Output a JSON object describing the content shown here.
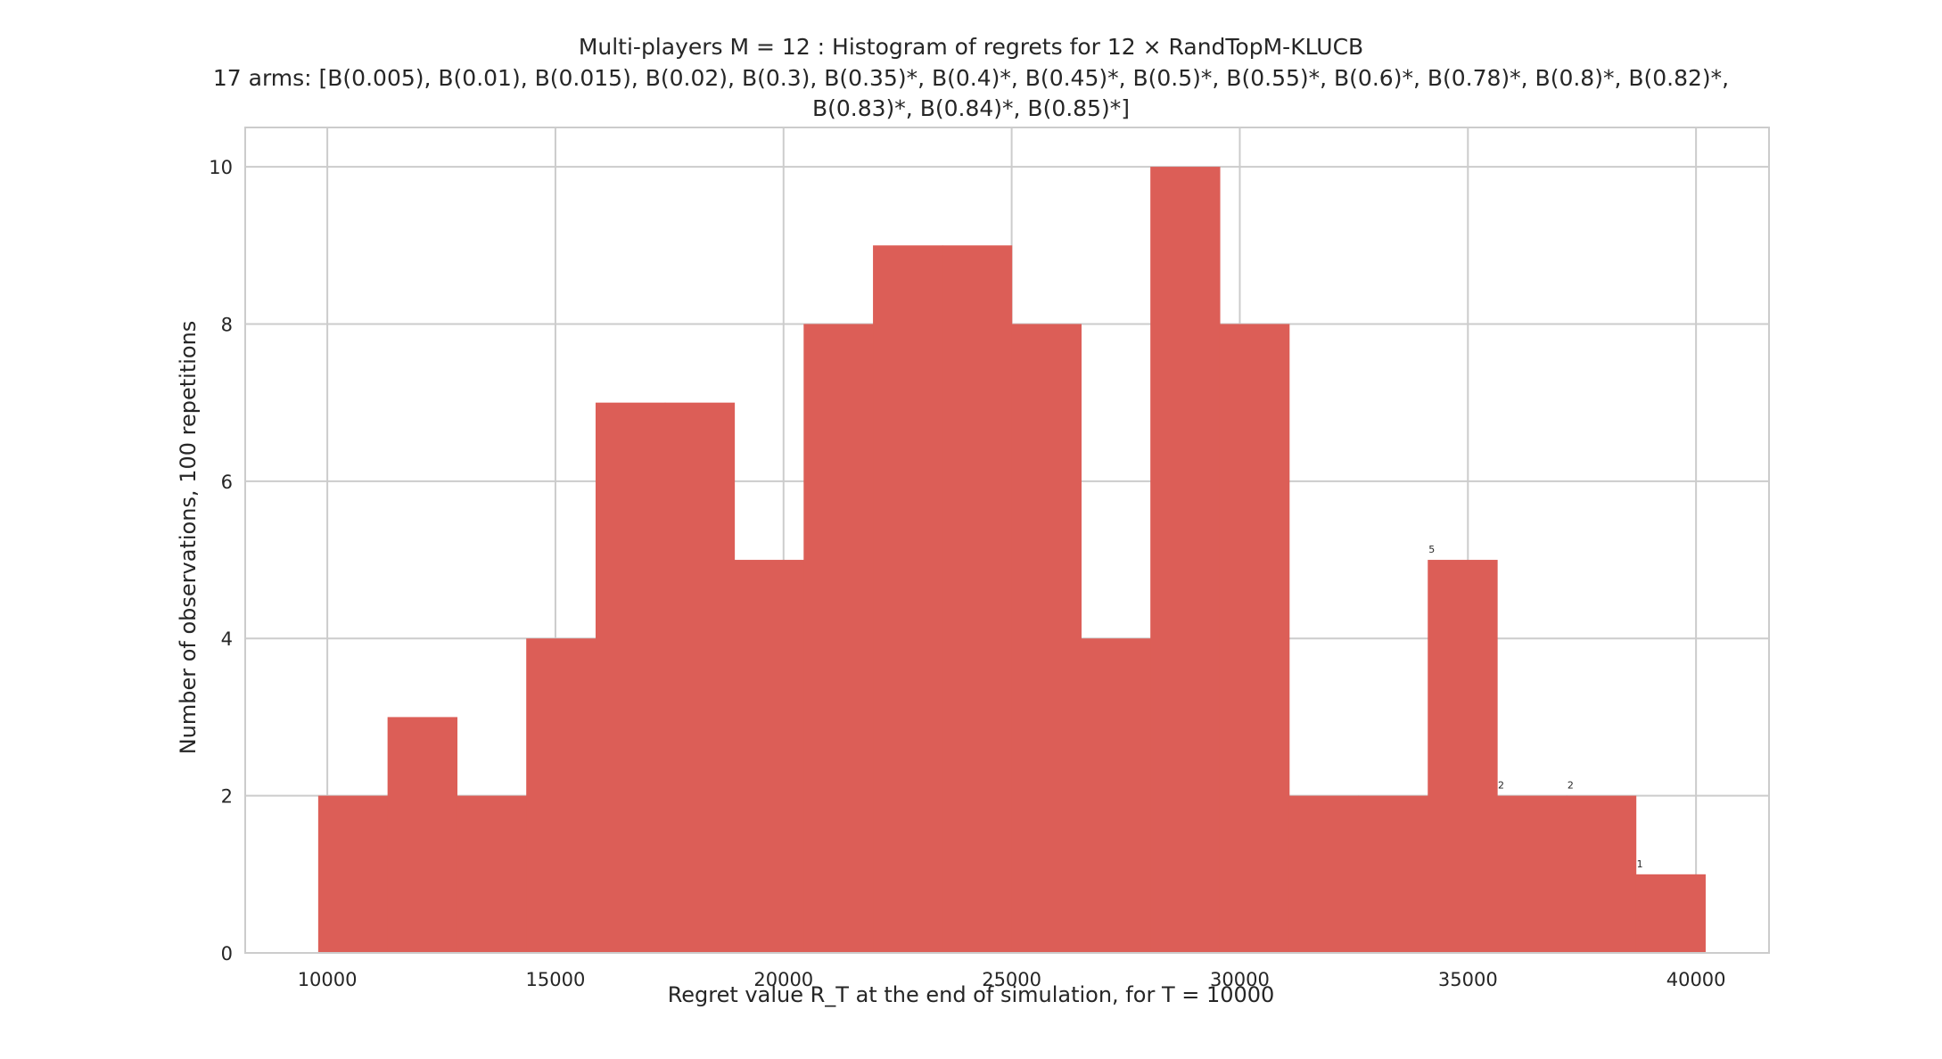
{
  "chart_data": {
    "type": "histogram",
    "title_line1": "Multi-players M = 12 : Histogram of regrets for 12 × RandTopM-KLUCB",
    "title_line2": "17 arms: [B(0.005), B(0.01), B(0.015), B(0.02), B(0.3), B(0.35)*, B(0.4)*, B(0.45)*, B(0.5)*, B(0.55)*, B(0.6)*, B(0.78)*, B(0.8)*, B(0.82)*,",
    "title_line3": "B(0.83)*, B(0.84)*, B(0.85)*]",
    "xlabel": "Regret value R_T at the end of simulation, for T = 10000",
    "ylabel": "Number of observations, 100 repetitions",
    "xlim": [
      8200,
      41600
    ],
    "ylim": [
      0,
      10.5
    ],
    "xticks": [
      10000,
      15000,
      20000,
      25000,
      30000,
      35000,
      40000
    ],
    "yticks": [
      0,
      2,
      4,
      6,
      8,
      10
    ],
    "grid": true,
    "bar_color": "#dc5e57",
    "bin_edges": [
      9800,
      11320,
      12840,
      14360,
      15880,
      17400,
      18920,
      20440,
      21960,
      23480,
      25000,
      26520,
      28040,
      29560,
      31080,
      32600,
      34120,
      35640,
      37160,
      38680,
      40200
    ],
    "counts": [
      2,
      3,
      2,
      4,
      7,
      7,
      5,
      8,
      9,
      9,
      8,
      4,
      10,
      8,
      2,
      2,
      5,
      2,
      2,
      1
    ],
    "data_labels": [
      {
        "bin": 16,
        "text": "5"
      },
      {
        "bin": 17,
        "text": "2"
      },
      {
        "bin": 18,
        "text": "2"
      },
      {
        "bin": 19,
        "text": "1"
      }
    ]
  }
}
